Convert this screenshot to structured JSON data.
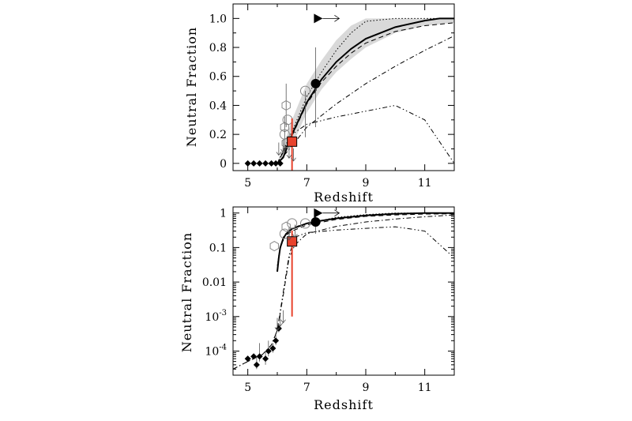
{
  "chart_data": [
    {
      "type": "line",
      "panel": "top",
      "xlabel": "Redshift",
      "ylabel": "Neutral Fraction",
      "xlim": [
        4.5,
        12
      ],
      "ylim": [
        -0.05,
        1.1
      ],
      "yscale": "linear",
      "x_ticks": [
        5,
        7,
        9,
        11
      ],
      "x_tick_labels": [
        "5",
        "7",
        "9",
        "11"
      ],
      "y_ticks": [
        0,
        0.2,
        0.4,
        0.6,
        0.8,
        1.0
      ],
      "y_tick_labels": [
        "0",
        "0.2",
        "0.4",
        "0.6",
        "0.8",
        "1.0"
      ],
      "shaded_band": {
        "x": [
          6.0,
          6.5,
          7.0,
          7.5,
          8.0,
          8.5,
          9.0,
          10.0,
          11.0,
          12.0
        ],
        "lower": [
          0.0,
          0.12,
          0.35,
          0.51,
          0.63,
          0.72,
          0.8,
          0.9,
          0.95,
          0.97
        ],
        "upper": [
          0.0,
          0.3,
          0.55,
          0.71,
          0.85,
          0.95,
          1.0,
          1.0,
          1.0,
          1.0
        ]
      },
      "series": [
        {
          "style": "solid-thick",
          "x": [
            6.0,
            6.2,
            6.5,
            7.0,
            7.5,
            8.0,
            8.5,
            9.0,
            10.0,
            11.0,
            11.5,
            12.0
          ],
          "y": [
            0.0,
            0.04,
            0.2,
            0.42,
            0.58,
            0.7,
            0.79,
            0.86,
            0.94,
            0.985,
            1.0,
            1.0
          ]
        },
        {
          "style": "dashed",
          "x": [
            6.0,
            6.5,
            7.0,
            7.5,
            8.0,
            8.5,
            9.0,
            10.0,
            11.0,
            12.0
          ],
          "y": [
            0.0,
            0.19,
            0.41,
            0.56,
            0.67,
            0.76,
            0.83,
            0.91,
            0.95,
            0.97
          ]
        },
        {
          "style": "dotted",
          "x": [
            6.0,
            6.5,
            7.0,
            7.5,
            8.0,
            8.5,
            9.0,
            10.0,
            11.0,
            12.0
          ],
          "y": [
            0.0,
            0.22,
            0.46,
            0.63,
            0.78,
            0.9,
            0.98,
            1.0,
            1.0,
            1.0
          ]
        },
        {
          "style": "dash-dot",
          "x": [
            6.0,
            6.5,
            7.0,
            7.5,
            8.0,
            9.0,
            10.0,
            11.0,
            12.0
          ],
          "y": [
            0.0,
            0.12,
            0.25,
            0.33,
            0.41,
            0.55,
            0.67,
            0.78,
            0.88
          ]
        },
        {
          "style": "dash-dot-dot",
          "x": [
            6.0,
            6.5,
            7.0,
            8.0,
            9.0,
            10.0,
            11.0,
            12.0
          ],
          "y": [
            0.0,
            0.2,
            0.27,
            0.32,
            0.36,
            0.4,
            0.3,
            0.0
          ]
        }
      ],
      "points": [
        {
          "marker": "filled-diamond",
          "x": 5.0,
          "y": 0.0
        },
        {
          "marker": "filled-diamond",
          "x": 5.2,
          "y": 0.0
        },
        {
          "marker": "filled-diamond",
          "x": 5.4,
          "y": 0.0
        },
        {
          "marker": "filled-diamond",
          "x": 5.6,
          "y": 0.0
        },
        {
          "marker": "filled-diamond",
          "x": 5.8,
          "y": 0.0
        },
        {
          "marker": "filled-diamond",
          "x": 5.95,
          "y": 0.0
        },
        {
          "marker": "filled-diamond",
          "x": 6.1,
          "y": 0.0
        },
        {
          "marker": "open-hexagon",
          "x": 6.3,
          "y": 0.4,
          "yerr_low": 0.15,
          "yerr_high": 0.15
        },
        {
          "marker": "open-hexagon",
          "x": 6.25,
          "y": 0.25
        },
        {
          "marker": "open-hexagon",
          "x": 6.3,
          "y": 0.14
        },
        {
          "marker": "open-circle",
          "x": 6.25,
          "y": 0.2,
          "yerr_low": 0.12,
          "yerr_high": 0.12
        },
        {
          "marker": "open-circle",
          "x": 6.35,
          "y": 0.3
        },
        {
          "marker": "open-circle",
          "x": 6.95,
          "y": 0.5,
          "yerr_low": 0.32,
          "yerr_high": 0.0
        },
        {
          "marker": "open-square",
          "x": 6.5,
          "y": 0.15,
          "color": "#e8432d",
          "fill": "#e8432d",
          "yerr_low": 0.2,
          "yerr_high": 0.16
        },
        {
          "marker": "filled-circle",
          "x": 7.3,
          "y": 0.55,
          "yerr_low": 0.3,
          "yerr_high": 0.25
        },
        {
          "marker": "filled-triangle-lower-limit",
          "x": 7.35,
          "y": 1.0,
          "arrow_to_x": 8.1
        },
        {
          "marker": "upper-limit-arrow",
          "x": 6.05,
          "y": 0.1
        },
        {
          "marker": "upper-limit-arrow",
          "x": 6.2,
          "y": 0.12
        },
        {
          "marker": "upper-limit-arrow",
          "x": 6.4,
          "y": 0.08
        },
        {
          "marker": "upper-limit-arrow",
          "x": 6.55,
          "y": 0.06
        }
      ]
    },
    {
      "type": "line",
      "panel": "bottom",
      "xlabel": "Redshift",
      "ylabel": "Neutral Fraction",
      "xlim": [
        4.5,
        12
      ],
      "ylim": [
        2e-05,
        1.5
      ],
      "yscale": "log",
      "x_ticks": [
        5,
        7,
        9,
        11
      ],
      "x_tick_labels": [
        "5",
        "7",
        "9",
        "11"
      ],
      "y_ticks": [
        0.0001,
        0.001,
        0.01,
        0.1,
        1
      ],
      "y_tick_labels": [
        {
          "base": "10",
          "exp": "-4"
        },
        {
          "base": "10",
          "exp": "-3"
        },
        {
          "text": "0.01"
        },
        {
          "text": "0.1"
        },
        {
          "text": "1"
        }
      ],
      "series": [
        {
          "style": "solid-thick",
          "x": [
            6.0,
            6.05,
            6.1,
            6.2,
            6.3,
            6.5,
            7.0,
            7.5,
            8.0,
            9.0,
            10.0,
            11.0,
            12.0
          ],
          "y": [
            0.02,
            0.05,
            0.1,
            0.18,
            0.25,
            0.35,
            0.5,
            0.6,
            0.7,
            0.85,
            0.95,
            1.0,
            1.0
          ]
        },
        {
          "style": "dashed",
          "x": [
            6.0,
            6.05,
            6.2,
            6.5,
            7.0,
            8.0,
            9.0,
            10.0,
            11.0,
            12.0
          ],
          "y": [
            0.02,
            0.06,
            0.2,
            0.3,
            0.45,
            0.65,
            0.8,
            0.88,
            0.93,
            0.95
          ]
        },
        {
          "style": "dotted",
          "x": [
            6.0,
            6.1,
            6.3,
            6.6,
            7.0,
            8.0,
            9.0,
            10.0,
            11.0,
            12.0
          ],
          "y": [
            0.03,
            0.1,
            0.25,
            0.4,
            0.5,
            0.75,
            0.9,
            1.0,
            1.0,
            1.0
          ]
        },
        {
          "style": "dash-dot",
          "x": [
            4.5,
            5.0,
            5.5,
            5.8,
            6.0,
            6.2,
            6.4,
            6.6,
            7.0,
            8.0,
            9.0,
            10.0,
            11.0,
            12.0
          ],
          "y": [
            3e-05,
            5e-05,
            8e-05,
            0.00015,
            0.0004,
            0.004,
            0.05,
            0.12,
            0.25,
            0.41,
            0.55,
            0.67,
            0.78,
            0.88
          ]
        },
        {
          "style": "dash-dot-dot",
          "x": [
            4.5,
            5.0,
            5.5,
            5.8,
            6.0,
            6.2,
            6.4,
            6.6,
            7.0,
            8.0,
            9.0,
            10.0,
            11.0,
            12.0
          ],
          "y": [
            3e-05,
            5e-05,
            8e-05,
            0.00015,
            0.0004,
            0.005,
            0.06,
            0.2,
            0.27,
            0.32,
            0.36,
            0.4,
            0.3,
            0.05
          ]
        }
      ],
      "points": [
        {
          "marker": "filled-diamond",
          "x": 5.0,
          "y": 6e-05
        },
        {
          "marker": "filled-diamond",
          "x": 5.2,
          "y": 7e-05
        },
        {
          "marker": "filled-diamond",
          "x": 5.3,
          "y": 4e-05,
          "yerr_low": 1e-05,
          "yerr_high": 3e-05
        },
        {
          "marker": "filled-diamond",
          "x": 5.4,
          "y": 7e-05,
          "yerr_low": 2e-05,
          "yerr_high": 0.0001
        },
        {
          "marker": "filled-diamond",
          "x": 5.6,
          "y": 6e-05,
          "yerr_low": 2e-05,
          "yerr_high": 4e-05
        },
        {
          "marker": "filled-diamond",
          "x": 5.7,
          "y": 0.0001,
          "yerr_low": 3e-05,
          "yerr_high": 0.0001
        },
        {
          "marker": "filled-diamond",
          "x": 5.85,
          "y": 0.00012,
          "yerr_low": 3e-05,
          "yerr_high": 5e-05
        },
        {
          "marker": "filled-diamond",
          "x": 5.95,
          "y": 0.0002,
          "yerr_low": 5e-05,
          "yerr_high": 0.0001
        },
        {
          "marker": "filled-diamond",
          "x": 6.05,
          "y": 0.00045,
          "yerr_low": 0.0001,
          "yerr_high": 0.0001
        },
        {
          "marker": "open-hexagon",
          "x": 5.9,
          "y": 0.11
        },
        {
          "marker": "open-hexagon",
          "x": 6.3,
          "y": 0.4
        },
        {
          "marker": "open-circle",
          "x": 6.25,
          "y": 0.25
        },
        {
          "marker": "open-circle",
          "x": 6.5,
          "y": 0.5
        },
        {
          "marker": "open-circle",
          "x": 6.95,
          "y": 0.5
        },
        {
          "marker": "open-square",
          "x": 6.5,
          "y": 0.15,
          "color": "#e8432d",
          "fill": "#e8432d",
          "yerr_low": 0.149,
          "yerr_high": 0.16
        },
        {
          "marker": "filled-circle",
          "x": 7.3,
          "y": 0.55,
          "yerr_low": 0.3,
          "yerr_high": 0.25
        },
        {
          "marker": "filled-triangle-lower-limit",
          "x": 7.35,
          "y": 1.0,
          "arrow_to_x": 8.1
        },
        {
          "marker": "upper-limit-arrow",
          "x": 6.0,
          "y": 0.0006
        },
        {
          "marker": "upper-limit-arrow",
          "x": 6.1,
          "y": 0.0008
        },
        {
          "marker": "upper-limit-arrow",
          "x": 6.2,
          "y": 0.001
        },
        {
          "marker": "upper-limit-arrow",
          "x": 6.4,
          "y": 0.25
        },
        {
          "marker": "upper-limit-arrow",
          "x": 6.6,
          "y": 0.3
        }
      ]
    }
  ],
  "colors": {
    "ink": "#000000",
    "band": "#d9d9d9",
    "highlight": "#e8432d",
    "gray_marker": "#888888"
  }
}
